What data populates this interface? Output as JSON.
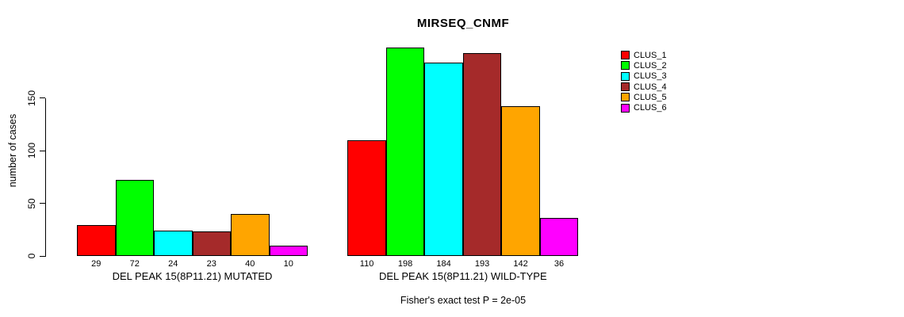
{
  "title": "MIRSEQ_CNMF",
  "chart_data": {
    "type": "bar",
    "title": "MIRSEQ_CNMF",
    "ylabel": "number of cases",
    "xlabel": "",
    "subtitle": "Fisher's exact test P = 2e-05",
    "yticks": [
      0,
      50,
      100,
      150
    ],
    "ylim": [
      0,
      202
    ],
    "grid": false,
    "legend_position": "right",
    "bar_value_labels": true,
    "categories": [
      "DEL PEAK 15(8P11.21) MUTATED",
      "DEL PEAK 15(8P11.21) WILD-TYPE"
    ],
    "series": [
      {
        "name": "CLUS_1",
        "color": "#FF0000",
        "values": [
          29,
          110
        ]
      },
      {
        "name": "CLUS_2",
        "color": "#00FF00",
        "values": [
          72,
          198
        ]
      },
      {
        "name": "CLUS_3",
        "color": "#00FFFF",
        "values": [
          24,
          184
        ]
      },
      {
        "name": "CLUS_4",
        "color": "#A52A2A",
        "values": [
          23,
          193
        ]
      },
      {
        "name": "CLUS_5",
        "color": "#FFA500",
        "values": [
          40,
          142
        ]
      },
      {
        "name": "CLUS_6",
        "color": "#FF00FF",
        "values": [
          10,
          36
        ]
      }
    ]
  },
  "legend": {
    "items": [
      {
        "label": "CLUS_1",
        "color": "#FF0000"
      },
      {
        "label": "CLUS_2",
        "color": "#00FF00"
      },
      {
        "label": "CLUS_3",
        "color": "#00FFFF"
      },
      {
        "label": "CLUS_4",
        "color": "#A52A2A"
      },
      {
        "label": "CLUS_5",
        "color": "#FFA500"
      },
      {
        "label": "CLUS_6",
        "color": "#FF00FF"
      }
    ]
  }
}
